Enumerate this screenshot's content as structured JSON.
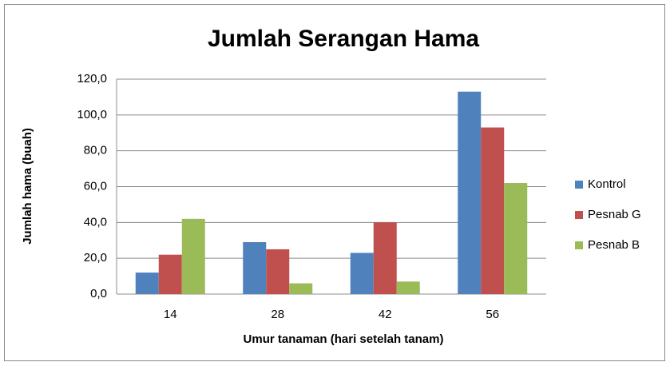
{
  "chart_data": {
    "type": "bar",
    "title": "Jumlah Serangan Hama",
    "x_label": "Umur tanaman (hari setelah tanam)",
    "y_label": "Jumlah hama (buah)",
    "categories": [
      "14",
      "28",
      "42",
      "56"
    ],
    "series": [
      {
        "name": "Kontrol",
        "color": "#4f81bd",
        "values": [
          12,
          29,
          23,
          113
        ]
      },
      {
        "name": "Pesnab G",
        "color": "#c0504d",
        "values": [
          22,
          25,
          40,
          93
        ]
      },
      {
        "name": "Pesnab B",
        "color": "#9bbb59",
        "values": [
          42,
          6,
          7,
          62
        ]
      }
    ],
    "ylim": [
      0,
      120
    ],
    "yticks": [
      {
        "value": 0,
        "label": "0,0"
      },
      {
        "value": 20,
        "label": "20,0"
      },
      {
        "value": 40,
        "label": "40,0"
      },
      {
        "value": 60,
        "label": "60,0"
      },
      {
        "value": 80,
        "label": "80,0"
      },
      {
        "value": 100,
        "label": "100,0"
      },
      {
        "value": 120,
        "label": "120,0"
      }
    ],
    "grid": true,
    "legend": "right"
  }
}
